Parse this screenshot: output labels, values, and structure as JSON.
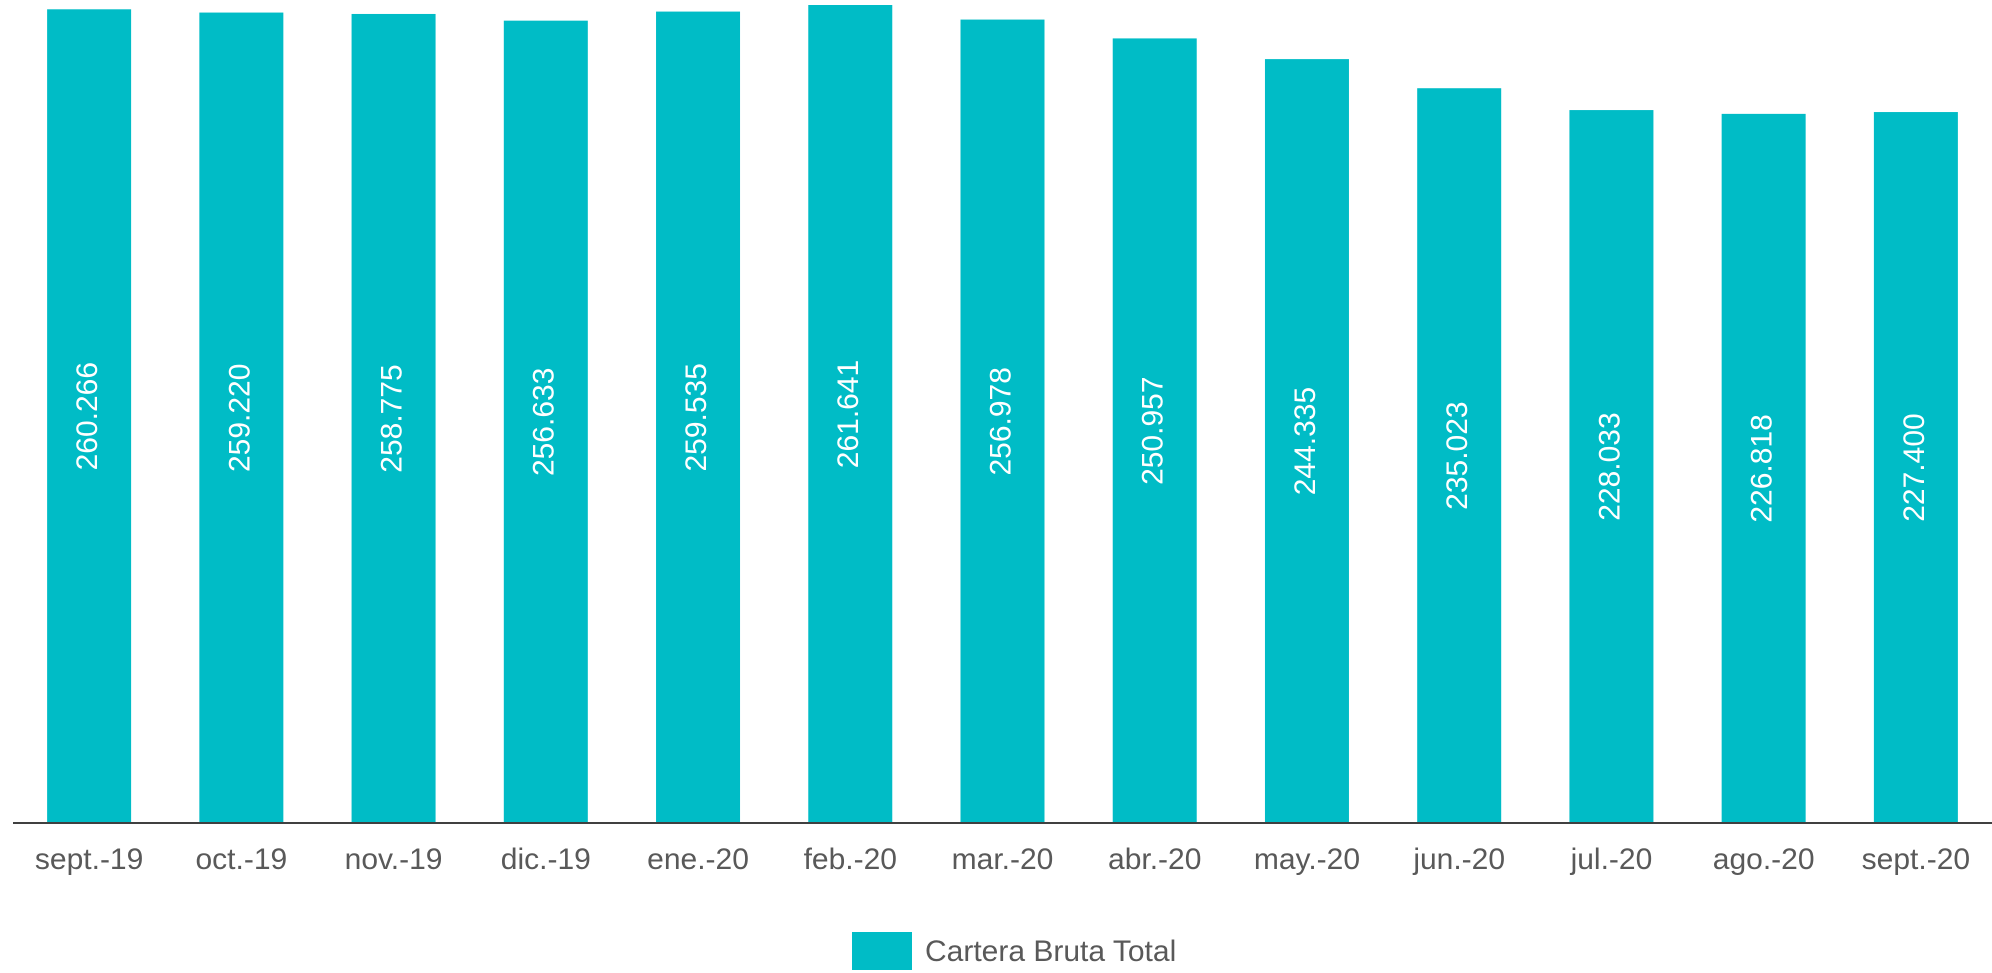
{
  "chart_data": {
    "type": "bar",
    "categories": [
      "sept.-19",
      "oct.-19",
      "nov.-19",
      "dic.-19",
      "ene.-20",
      "feb.-20",
      "mar.-20",
      "abr.-20",
      "may.-20",
      "jun.-20",
      "jul.-20",
      "ago.-20",
      "sept.-20"
    ],
    "series": [
      {
        "name": "Cartera Bruta Total",
        "color": "#00bcc6",
        "values": [
          260266,
          259220,
          258775,
          256633,
          259535,
          261641,
          256978,
          250957,
          244335,
          235023,
          228033,
          226818,
          227400
        ],
        "value_labels": [
          "260.266",
          "259.220",
          "258.775",
          "256.633",
          "259.535",
          "261.641",
          "256.978",
          "250.957",
          "244.335",
          "235.023",
          "228.033",
          "226.818",
          "227.400"
        ]
      }
    ],
    "legend": "bottom"
  }
}
